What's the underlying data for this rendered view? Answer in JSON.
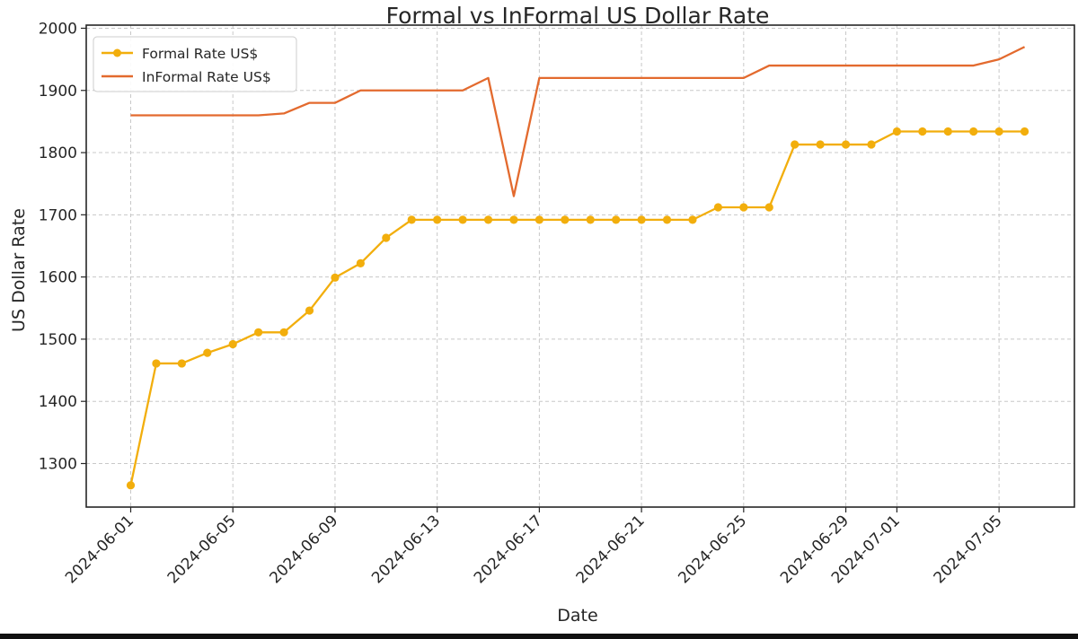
{
  "chart_data": {
    "type": "line",
    "title": "Formal vs InFormal US Dollar Rate",
    "xlabel": "Date",
    "ylabel": "US Dollar Rate",
    "ylim": [
      1230,
      2005
    ],
    "yticks": [
      1300,
      1400,
      1500,
      1600,
      1700,
      1800,
      1900,
      2000
    ],
    "grid": true,
    "legend_position": "top-left",
    "x_tick_labels": [
      {
        "day": 0,
        "label": "2024-06-01"
      },
      {
        "day": 4,
        "label": "2024-06-05"
      },
      {
        "day": 8,
        "label": "2024-06-09"
      },
      {
        "day": 12,
        "label": "2024-06-13"
      },
      {
        "day": 16,
        "label": "2024-06-17"
      },
      {
        "day": 20,
        "label": "2024-06-21"
      },
      {
        "day": 24,
        "label": "2024-06-25"
      },
      {
        "day": 28,
        "label": "2024-06-29"
      },
      {
        "day": 30,
        "label": "2024-07-01"
      },
      {
        "day": 34,
        "label": "2024-07-05"
      }
    ],
    "x_days": [
      0,
      1,
      2,
      3,
      4,
      5,
      6,
      7,
      8,
      9,
      10,
      11,
      12,
      13,
      14,
      15,
      16,
      17,
      18,
      19,
      20,
      21,
      22,
      23,
      24,
      25,
      26,
      27,
      28,
      29,
      30,
      31,
      32,
      33,
      34,
      35
    ],
    "series": [
      {
        "name": "Formal Rate US$",
        "color": "#F2AE0C",
        "marker": "circle",
        "values": [
          1265,
          1461,
          1461,
          1478,
          1492,
          1511,
          1511,
          1546,
          1599,
          1622,
          1663,
          1692,
          1692,
          1692,
          1692,
          1692,
          1692,
          1692,
          1692,
          1692,
          1692,
          1692,
          1692,
          1712,
          1712,
          1712,
          1813,
          1813,
          1813,
          1813,
          1834,
          1834,
          1834,
          1834,
          1834,
          1834
        ]
      },
      {
        "name": "InFormal Rate US$",
        "color": "#E36A2E",
        "marker": "none",
        "values": [
          1860,
          1860,
          1860,
          1860,
          1860,
          1860,
          1863,
          1880,
          1880,
          1900,
          1900,
          1900,
          1900,
          1900,
          1920,
          1730,
          1920,
          1920,
          1920,
          1920,
          1920,
          1920,
          1920,
          1920,
          1920,
          1940,
          1940,
          1940,
          1940,
          1940,
          1940,
          1940,
          1940,
          1940,
          1950,
          1970
        ]
      }
    ]
  }
}
